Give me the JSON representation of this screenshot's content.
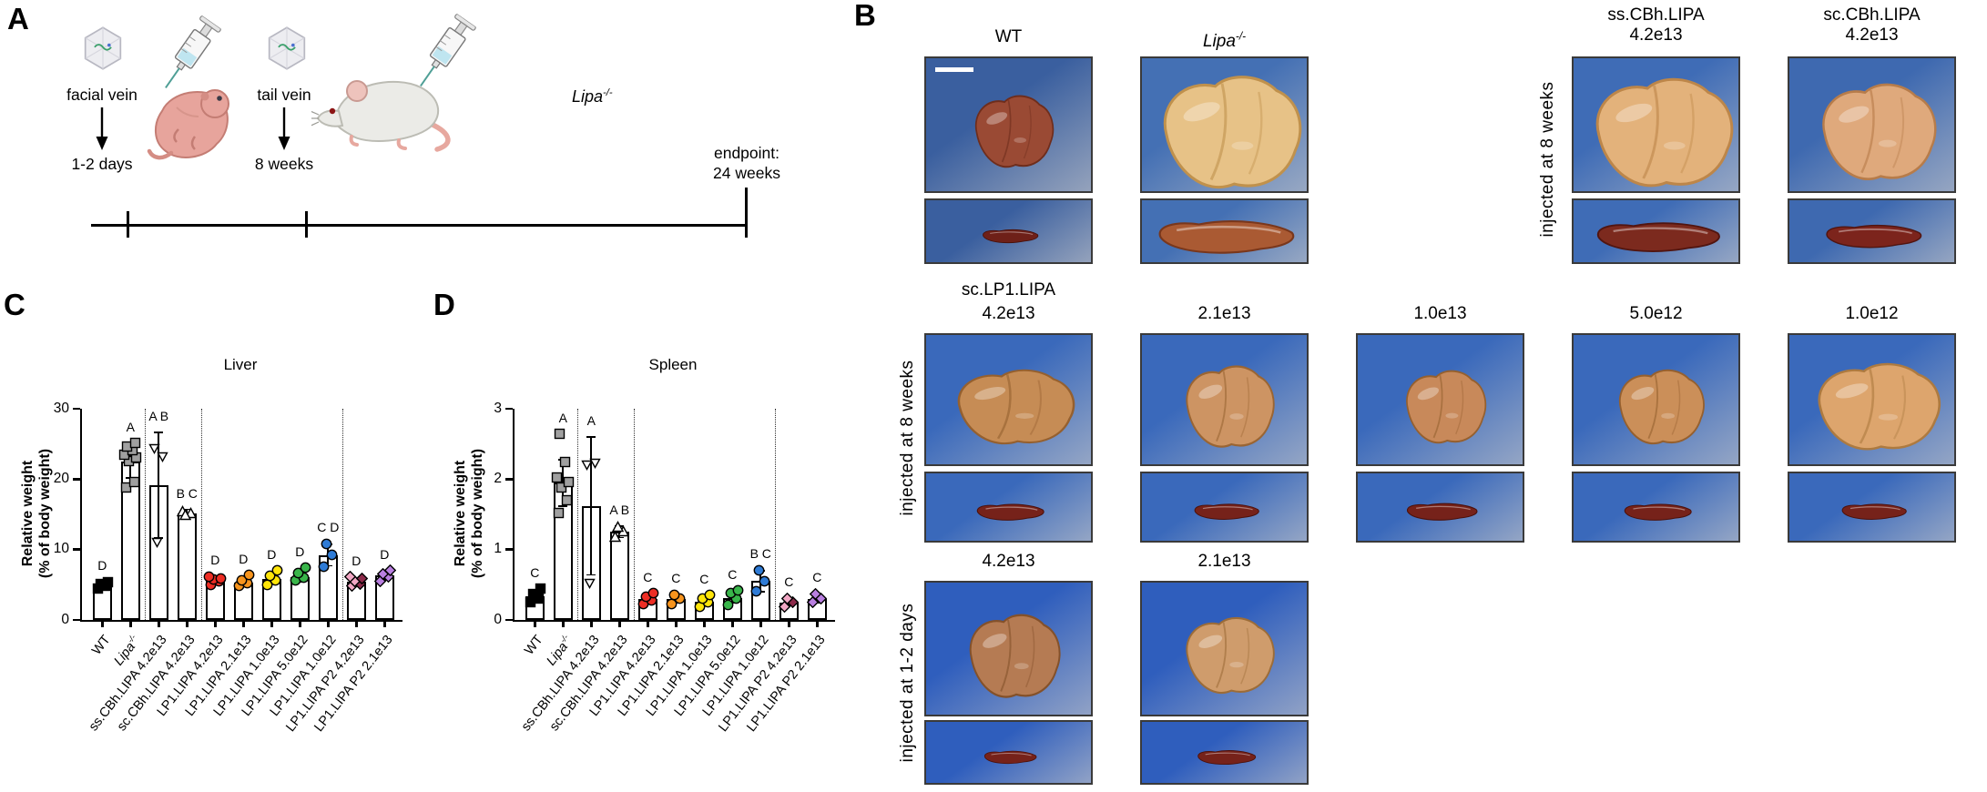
{
  "panel_a": {
    "label": "A",
    "events": [
      {
        "route": "facial vein",
        "time": "1-2 days"
      },
      {
        "route": "tail vein",
        "time": "8 weeks"
      }
    ],
    "endpoint_line1": "endpoint:",
    "endpoint_line2": "24 weeks",
    "genotype": "Lipa-/-"
  },
  "panel_b": {
    "label": "B",
    "rows": [
      {
        "side_label": "injected at 8 weeks",
        "side_label_col": 3,
        "header": "",
        "cells": [
          {
            "col": 0,
            "title": "WT",
            "italic": false,
            "scalebar": true,
            "bg": "#3a5f9f",
            "liver": {
              "fill": "#9a4a34",
              "edge": "#6e2d1c",
              "w": 0.55,
              "h": 0.6
            },
            "spleen": {
              "fill": "#6e2018",
              "edge": "#471009",
              "w": 0.36
            }
          },
          {
            "col": 1,
            "title": "Lipa-/-",
            "italic": true,
            "bg": "#4470b4",
            "liver": {
              "fill": "#e7c287",
              "edge": "#c0914c",
              "w": 0.97,
              "h": 0.93
            },
            "spleen": {
              "fill": "#aa5a33",
              "edge": "#79371c",
              "w": 0.88
            }
          },
          {
            "col": 3,
            "title": "ss.CBh.LIPA",
            "subtitle": "4.2e13",
            "italic": false,
            "bg": "#3f6cb6",
            "liver": {
              "fill": "#e3b27b",
              "edge": "#bd8649",
              "w": 0.96,
              "h": 0.9
            },
            "spleen": {
              "fill": "#7c2a1e",
              "edge": "#511510",
              "w": 0.8
            }
          },
          {
            "col": 4,
            "title": "sc.CBh.LIPA",
            "subtitle": "4.2e13",
            "italic": false,
            "bg": "#3e69b0",
            "liver": {
              "fill": "#dfa97c",
              "edge": "#b77c4a",
              "w": 0.8,
              "h": 0.8
            },
            "spleen": {
              "fill": "#7c241c",
              "edge": "#511510",
              "w": 0.62
            }
          }
        ]
      },
      {
        "side_label": "injected at 8 weeks",
        "side_label_col": 0,
        "header": "sc.LP1.LIPA",
        "cells": [
          {
            "col": 0,
            "title": "4.2e13",
            "bg": "#3a69bb",
            "liver": {
              "fill": "#c68c55",
              "edge": "#95602f",
              "w": 0.82,
              "h": 0.64
            },
            "spleen": {
              "fill": "#76221a",
              "edge": "#4c110b",
              "w": 0.44
            }
          },
          {
            "col": 1,
            "title": "2.1e13",
            "bg": "#3a69bb",
            "liver": {
              "fill": "#cd9463",
              "edge": "#9a6533",
              "w": 0.62,
              "h": 0.7
            },
            "spleen": {
              "fill": "#76221a",
              "edge": "#4c110b",
              "w": 0.42
            }
          },
          {
            "col": 2,
            "title": "1.0e13",
            "bg": "#3a69bb",
            "liver": {
              "fill": "#c8895a",
              "edge": "#95602f",
              "w": 0.56,
              "h": 0.62
            },
            "spleen": {
              "fill": "#76221a",
              "edge": "#4c110b",
              "w": 0.46
            }
          },
          {
            "col": 3,
            "title": "5.0e12",
            "bg": "#3a69bb",
            "liver": {
              "fill": "#cb8f59",
              "edge": "#95602f",
              "w": 0.6,
              "h": 0.64
            },
            "spleen": {
              "fill": "#76221a",
              "edge": "#4c110b",
              "w": 0.44
            }
          },
          {
            "col": 4,
            "title": "1.0e12",
            "bg": "#3a69bb",
            "liver": {
              "fill": "#dda56d",
              "edge": "#ad7a40",
              "w": 0.86,
              "h": 0.74
            },
            "spleen": {
              "fill": "#76221a",
              "edge": "#4c110b",
              "w": 0.42
            }
          }
        ]
      },
      {
        "side_label": "injected at 1-2 days",
        "side_label_col": 0,
        "header": "",
        "cells": [
          {
            "col": 0,
            "title": "4.2e13",
            "bg": "#2f5ebd",
            "liver": {
              "fill": "#b57b53",
              "edge": "#84512a",
              "w": 0.64,
              "h": 0.7
            },
            "spleen": {
              "fill": "#76221a",
              "edge": "#4c110b",
              "w": 0.34
            }
          },
          {
            "col": 1,
            "title": "2.1e13",
            "bg": "#2f5ebd",
            "liver": {
              "fill": "#cf9c6c",
              "edge": "#9c6c38",
              "w": 0.62,
              "h": 0.64
            },
            "spleen": {
              "fill": "#76221a",
              "edge": "#4c110b",
              "w": 0.38
            }
          }
        ]
      }
    ]
  },
  "chart_data": [
    {
      "type": "bar",
      "panel_label": "C",
      "title": "Liver",
      "ylabel": [
        "Relative weight",
        "(% of body weight)"
      ],
      "xlabel": "",
      "ylim": [
        0,
        30
      ],
      "yticks": [
        0,
        10,
        20,
        30
      ],
      "grid": false,
      "legend": "none",
      "separators_before": [
        2,
        4,
        9
      ],
      "categories": [
        "WT",
        "Lipa-/-",
        "ss.CBh.LIPA 4.2e13",
        "sc.CBh.LIPA 4.2e13",
        "LP1.LIPA 4.2e13",
        "LP1.LIPA 2.1e13",
        "LP1.LIPA 1.0e13",
        "LP1.LIPA 5.0e12",
        "LP1.LIPA 1.0e12",
        "LP1.LIPA P2 4.2e13",
        "LP1.LIPA P2 2.1e13"
      ],
      "bars": [
        {
          "mean": 4.9,
          "err": [
            4.4,
            5.4
          ],
          "points": [
            4.4,
            4.8,
            5.1,
            5.4
          ],
          "sig": "D",
          "marker": "square",
          "fill": "#000000"
        },
        {
          "mean": 22.5,
          "err": [
            20.2,
            25.0
          ],
          "points": [
            18.8,
            19.6,
            22.6,
            23.1,
            23.5,
            24.1,
            24.6,
            25.1
          ],
          "sig": "A",
          "marker": "square",
          "fill": "#a0a0a0"
        },
        {
          "mean": 19.2,
          "err": [
            11.6,
            26.6
          ],
          "points": [
            24.4,
            23.2,
            11.0
          ],
          "sig": "A B",
          "marker": "tri-down",
          "fill": "#ffffff"
        },
        {
          "mean": 15.1,
          "err": [
            14.6,
            15.7
          ],
          "points": [
            15.5,
            15.2,
            14.9
          ],
          "sig": "B C",
          "marker": "tri-up",
          "fill": "#ffffff"
        },
        {
          "mean": 5.6,
          "err": [
            5.0,
            6.2
          ],
          "points": [
            5.0,
            5.5,
            5.7,
            5.9,
            6.2
          ],
          "sig": "D",
          "marker": "circle",
          "fill": "#ed2d24"
        },
        {
          "mean": 5.3,
          "err": [
            4.7,
            5.9
          ],
          "points": [
            4.8,
            5.2,
            5.6,
            6.4
          ],
          "sig": "D",
          "marker": "circle",
          "fill": "#f7941d"
        },
        {
          "mean": 5.8,
          "err": [
            5.1,
            6.5
          ],
          "points": [
            5.0,
            5.6,
            6.3,
            7.0
          ],
          "sig": "D",
          "marker": "circle",
          "fill": "#ffe50a"
        },
        {
          "mean": 6.1,
          "err": [
            5.4,
            6.8
          ],
          "points": [
            5.6,
            6.0,
            6.7,
            7.4
          ],
          "sig": "D",
          "marker": "circle",
          "fill": "#39b54a"
        },
        {
          "mean": 9.2,
          "err": [
            7.7,
            10.7
          ],
          "points": [
            7.6,
            9.2,
            10.8
          ],
          "sig": "C D",
          "marker": "circle",
          "fill": "#2e7bd6"
        },
        {
          "mean": 5.4,
          "err": [
            4.9,
            5.9
          ],
          "points": [
            4.8,
            5.1,
            5.5,
            5.9,
            6.1
          ],
          "sig": "D",
          "marker": "diamond",
          "fill": "#f2a7c4",
          "fill_alt": "#8c2a4a"
        },
        {
          "mean": 6.3,
          "err": [
            5.7,
            6.9
          ],
          "points": [
            5.5,
            6.1,
            6.5,
            7.0
          ],
          "sig": "D",
          "marker": "diamond",
          "fill": "#b97fe0"
        }
      ]
    },
    {
      "type": "bar",
      "panel_label": "D",
      "title": "Spleen",
      "ylabel": [
        "Relative weight",
        "(% of body weight)"
      ],
      "xlabel": "",
      "ylim": [
        0,
        3
      ],
      "yticks": [
        0,
        1,
        2,
        3
      ],
      "grid": false,
      "legend": "none",
      "separators_before": [
        2,
        4,
        9
      ],
      "categories": [
        "WT",
        "Lipa-/-",
        "ss.CBh.LIPA 4.2e13",
        "sc.CBh.LIPA 4.2e13",
        "LP1.LIPA 4.2e13",
        "LP1.LIPA 2.1e13",
        "LP1.LIPA 1.0e13",
        "LP1.LIPA 5.0e12",
        "LP1.LIPA 1.0e12",
        "LP1.LIPA P2 4.2e13",
        "LP1.LIPA P2 2.1e13"
      ],
      "bars": [
        {
          "mean": 0.34,
          "err": [
            0.25,
            0.43
          ],
          "points": [
            0.25,
            0.31,
            0.37,
            0.44
          ],
          "sig": "C",
          "marker": "square",
          "fill": "#000000"
        },
        {
          "mean": 1.95,
          "err": [
            1.62,
            2.28
          ],
          "points": [
            1.52,
            1.7,
            1.88,
            1.96,
            2.02,
            2.25,
            2.64
          ],
          "sig": "A",
          "marker": "square",
          "fill": "#a0a0a0"
        },
        {
          "mean": 1.62,
          "err": [
            0.64,
            2.6
          ],
          "points": [
            2.21,
            2.23,
            0.52
          ],
          "sig": "A",
          "marker": "tri-down",
          "fill": "#ffffff"
        },
        {
          "mean": 1.25,
          "err": [
            1.17,
            1.33
          ],
          "points": [
            1.18,
            1.26,
            1.33
          ],
          "sig": "A B",
          "marker": "tri-up",
          "fill": "#ffffff"
        },
        {
          "mean": 0.3,
          "err": [
            0.24,
            0.37
          ],
          "points": [
            0.22,
            0.28,
            0.33,
            0.38
          ],
          "sig": "C",
          "marker": "circle",
          "fill": "#ed2d24"
        },
        {
          "mean": 0.3,
          "err": [
            0.25,
            0.36
          ],
          "points": [
            0.23,
            0.3,
            0.36
          ],
          "sig": "C",
          "marker": "circle",
          "fill": "#f7941d"
        },
        {
          "mean": 0.26,
          "err": [
            0.2,
            0.32
          ],
          "points": [
            0.19,
            0.25,
            0.31,
            0.35
          ],
          "sig": "C",
          "marker": "circle",
          "fill": "#ffe50a"
        },
        {
          "mean": 0.31,
          "err": [
            0.24,
            0.39
          ],
          "points": [
            0.21,
            0.3,
            0.38,
            0.42
          ],
          "sig": "C",
          "marker": "circle",
          "fill": "#39b54a"
        },
        {
          "mean": 0.55,
          "err": [
            0.4,
            0.7
          ],
          "points": [
            0.41,
            0.55,
            0.71
          ],
          "sig": "B C",
          "marker": "circle",
          "fill": "#2e7bd6"
        },
        {
          "mean": 0.25,
          "err": [
            0.2,
            0.31
          ],
          "points": [
            0.19,
            0.25,
            0.3
          ],
          "sig": "C",
          "marker": "diamond",
          "fill": "#f2a7c4",
          "fill_alt": "#8c2a4a"
        },
        {
          "mean": 0.3,
          "err": [
            0.25,
            0.36
          ],
          "points": [
            0.25,
            0.3,
            0.37
          ],
          "sig": "C",
          "marker": "diamond",
          "fill": "#b97fe0"
        }
      ]
    }
  ]
}
